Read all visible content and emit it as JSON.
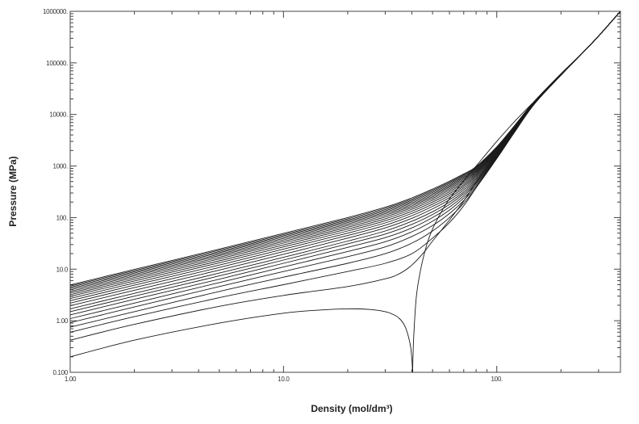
{
  "chart_data": {
    "type": "line",
    "title": "",
    "xlabel": "Density (mol/dm³)",
    "ylabel": "Pressure (MPa)",
    "x_scale": "log",
    "y_scale": "log",
    "xlim": [
      1.0,
      380
    ],
    "ylim": [
      0.1,
      1000000
    ],
    "grid": false,
    "legend": "none",
    "x_ticks": [
      {
        "value": 1,
        "label": "1.00"
      },
      {
        "value": 10,
        "label": "10.0"
      },
      {
        "value": 100,
        "label": "100."
      }
    ],
    "y_ticks": [
      {
        "value": 0.1,
        "label": "0.100"
      },
      {
        "value": 1,
        "label": "1.00"
      },
      {
        "value": 10,
        "label": "10.0"
      },
      {
        "value": 100,
        "label": "100."
      },
      {
        "value": 1000,
        "label": "1000."
      },
      {
        "value": 10000,
        "label": "10000."
      },
      {
        "value": 100000,
        "label": "100000."
      },
      {
        "value": 1000000,
        "label": "1000000."
      }
    ],
    "line_color": "#1a1a1a",
    "series": [
      {
        "x": [
          1.0,
          2.0,
          5.0,
          10.0,
          15.0,
          20.0,
          25.0,
          30.0,
          33.0,
          35.0,
          37.0,
          38.5,
          39.5,
          40.0,
          40.3
        ],
        "y": [
          0.2,
          0.42,
          0.9,
          1.4,
          1.62,
          1.7,
          1.66,
          1.5,
          1.3,
          1.1,
          0.8,
          0.5,
          0.3,
          0.18,
          0.1
        ]
      },
      {
        "x": [
          40.3,
          40.8,
          42.0,
          44.0,
          47.0,
          50.0,
          55.0,
          60.0,
          70.0,
          80.0,
          100.0,
          120.0,
          150.0,
          200.0,
          250.0,
          300.0,
          380.0
        ],
        "y": [
          0.1,
          0.5,
          3.0,
          10.0,
          30.0,
          60.0,
          130.0,
          230.0,
          520.0,
          1000.0,
          3000.0,
          7000.0,
          18000.0,
          60000.0,
          150000.0,
          330000.0,
          1000000.0
        ]
      },
      {
        "x": [
          1.0,
          2.0,
          5.0,
          10.0,
          20.0,
          30.0,
          35.0,
          40.0,
          45.0,
          50.0,
          60.0,
          70.0,
          80.0,
          100.0,
          120.0,
          150.0,
          200.0,
          250.0,
          300.0,
          380.0
        ],
        "y": [
          0.42,
          0.85,
          1.9,
          3.1,
          4.6,
          6.5,
          8.2,
          12.0,
          20.0,
          35.0,
          90.0,
          210.0,
          480.0,
          1800.0,
          5000.0,
          17000.0,
          60000.0,
          150000.0,
          330000.0,
          1000000.0
        ]
      },
      {
        "x": [
          1.0,
          2.0,
          5.0,
          10.0,
          20.0,
          30.0,
          40.0,
          50.0,
          60.0,
          70.0,
          80.0,
          100.0,
          120.0,
          150.0,
          200.0,
          250.0,
          300.0,
          380.0
        ],
        "y": [
          0.6,
          1.2,
          2.8,
          5.0,
          9.0,
          13.0,
          20.0,
          40.0,
          80.0,
          170.0,
          380.0,
          1500.0,
          4500.0,
          16000.0,
          58000.0,
          150000.0,
          330000.0,
          1000000.0
        ]
      },
      {
        "x": [
          1.0,
          2.0,
          5.0,
          10.0,
          20.0,
          30.0,
          40.0,
          50.0,
          60.0,
          70.0,
          80.0,
          100.0,
          120.0,
          150.0,
          200.0,
          250.0,
          300.0,
          380.0
        ],
        "y": [
          0.75,
          1.5,
          3.7,
          7.0,
          13.0,
          20.0,
          32.0,
          55.0,
          100.0,
          190.0,
          380.0,
          1400.0,
          4300.0,
          16000.0,
          58000.0,
          150000.0,
          330000.0,
          1000000.0
        ]
      },
      {
        "x": [
          1.0,
          2.0,
          5.0,
          10.0,
          20.0,
          30.0,
          40.0,
          50.0,
          60.0,
          70.0,
          80.0,
          100.0,
          120.0,
          150.0,
          200.0,
          250.0,
          300.0,
          380.0
        ],
        "y": [
          0.92,
          1.85,
          4.6,
          9.0,
          17.5,
          27.0,
          43.0,
          70.0,
          120.0,
          215.0,
          400.0,
          1400.0,
          4300.0,
          16000.0,
          58000.0,
          150000.0,
          330000.0,
          1000000.0
        ]
      },
      {
        "x": [
          1.0,
          2.0,
          5.0,
          10.0,
          20.0,
          30.0,
          40.0,
          50.0,
          60.0,
          70.0,
          80.0,
          100.0,
          120.0,
          150.0,
          200.0,
          250.0,
          300.0,
          380.0
        ],
        "y": [
          1.1,
          2.2,
          5.5,
          11.0,
          22.0,
          34.0,
          53.0,
          85.0,
          140.0,
          240.0,
          430.0,
          1450.0,
          4300.0,
          16000.0,
          58000.0,
          150000.0,
          330000.0,
          1000000.0
        ]
      },
      {
        "x": [
          1.0,
          2.0,
          5.0,
          10.0,
          20.0,
          30.0,
          40.0,
          50.0,
          60.0,
          70.0,
          80.0,
          100.0,
          120.0,
          150.0,
          200.0,
          250.0,
          300.0,
          380.0
        ],
        "y": [
          1.3,
          2.6,
          6.4,
          13.0,
          26.5,
          41.0,
          63.0,
          100.0,
          160.0,
          265.0,
          460.0,
          1500.0,
          4400.0,
          16000.0,
          58000.0,
          150000.0,
          330000.0,
          1000000.0
        ]
      },
      {
        "x": [
          1.0,
          2.0,
          5.0,
          10.0,
          20.0,
          30.0,
          40.0,
          50.0,
          60.0,
          70.0,
          80.0,
          100.0,
          120.0,
          150.0,
          200.0,
          250.0,
          300.0,
          380.0
        ],
        "y": [
          1.5,
          3.0,
          7.4,
          15.0,
          31.0,
          48.0,
          74.0,
          115.0,
          180.0,
          290.0,
          490.0,
          1550.0,
          4450.0,
          16200.0,
          58000.0,
          150000.0,
          330000.0,
          1000000.0
        ]
      },
      {
        "x": [
          1.0,
          2.0,
          5.0,
          10.0,
          20.0,
          30.0,
          40.0,
          50.0,
          60.0,
          70.0,
          80.0,
          100.0,
          120.0,
          150.0,
          200.0,
          250.0,
          300.0,
          380.0
        ],
        "y": [
          1.7,
          3.4,
          8.4,
          17.0,
          35.0,
          55.0,
          85.0,
          130.0,
          200.0,
          315.0,
          520.0,
          1600.0,
          4500.0,
          16300.0,
          58000.0,
          150000.0,
          330000.0,
          1000000.0
        ]
      },
      {
        "x": [
          1.0,
          2.0,
          5.0,
          10.0,
          20.0,
          30.0,
          40.0,
          50.0,
          60.0,
          70.0,
          80.0,
          100.0,
          120.0,
          150.0,
          200.0,
          250.0,
          300.0,
          380.0
        ],
        "y": [
          1.95,
          3.9,
          9.6,
          19.5,
          40.0,
          63.0,
          97.0,
          148.0,
          222.0,
          345.0,
          555.0,
          1650.0,
          4600.0,
          16400.0,
          58500.0,
          150000.0,
          330000.0,
          1000000.0
        ]
      },
      {
        "x": [
          1.0,
          2.0,
          5.0,
          10.0,
          20.0,
          30.0,
          40.0,
          50.0,
          60.0,
          70.0,
          80.0,
          100.0,
          120.0,
          150.0,
          200.0,
          250.0,
          300.0,
          380.0
        ],
        "y": [
          2.2,
          4.4,
          10.8,
          22.0,
          45.0,
          71.0,
          109.0,
          165.0,
          245.0,
          375.0,
          590.0,
          1700.0,
          4700.0,
          16500.0,
          58500.0,
          150000.0,
          330000.0,
          1000000.0
        ]
      },
      {
        "x": [
          1.0,
          2.0,
          5.0,
          10.0,
          20.0,
          30.0,
          40.0,
          50.0,
          60.0,
          70.0,
          80.0,
          100.0,
          120.0,
          150.0,
          200.0,
          250.0,
          300.0,
          380.0
        ],
        "y": [
          2.45,
          4.9,
          12.0,
          24.5,
          50.0,
          79.0,
          121.0,
          182.0,
          268.0,
          405.0,
          625.0,
          1760.0,
          4800.0,
          16600.0,
          59000.0,
          150000.0,
          330000.0,
          1000000.0
        ]
      },
      {
        "x": [
          1.0,
          2.0,
          5.0,
          10.0,
          20.0,
          30.0,
          40.0,
          50.0,
          60.0,
          70.0,
          80.0,
          100.0,
          120.0,
          150.0,
          200.0,
          250.0,
          300.0,
          380.0
        ],
        "y": [
          2.7,
          5.4,
          13.3,
          27.0,
          55.0,
          87.0,
          133.0,
          200.0,
          292.0,
          435.0,
          660.0,
          1820.0,
          4900.0,
          16800.0,
          59000.0,
          150000.0,
          330000.0,
          1000000.0
        ]
      },
      {
        "x": [
          1.0,
          2.0,
          5.0,
          10.0,
          20.0,
          30.0,
          40.0,
          50.0,
          60.0,
          70.0,
          80.0,
          100.0,
          120.0,
          150.0,
          200.0,
          250.0,
          300.0,
          380.0
        ],
        "y": [
          2.95,
          5.9,
          14.5,
          29.5,
          60.0,
          95.0,
          145.0,
          218.0,
          316.0,
          465.0,
          695.0,
          1880.0,
          5000.0,
          16900.0,
          59500.0,
          150000.0,
          330000.0,
          1000000.0
        ]
      },
      {
        "x": [
          1.0,
          2.0,
          5.0,
          10.0,
          20.0,
          30.0,
          40.0,
          50.0,
          60.0,
          70.0,
          80.0,
          100.0,
          120.0,
          150.0,
          200.0,
          250.0,
          300.0,
          380.0
        ],
        "y": [
          3.2,
          6.4,
          15.8,
          32.0,
          65.0,
          103.0,
          157.0,
          235.0,
          340.0,
          495.0,
          730.0,
          1940.0,
          5100.0,
          17000.0,
          59500.0,
          150000.0,
          330000.0,
          1000000.0
        ]
      },
      {
        "x": [
          1.0,
          2.0,
          5.0,
          10.0,
          20.0,
          30.0,
          40.0,
          50.0,
          60.0,
          70.0,
          80.0,
          100.0,
          120.0,
          150.0,
          200.0,
          250.0,
          300.0,
          380.0
        ],
        "y": [
          3.45,
          6.9,
          17.0,
          34.5,
          70.0,
          111.0,
          169.0,
          252.0,
          364.0,
          525.0,
          765.0,
          2000.0,
          5200.0,
          17200.0,
          60000.0,
          150000.0,
          330000.0,
          1000000.0
        ]
      },
      {
        "x": [
          1.0,
          2.0,
          5.0,
          10.0,
          20.0,
          30.0,
          40.0,
          50.0,
          60.0,
          70.0,
          80.0,
          100.0,
          120.0,
          150.0,
          200.0,
          250.0,
          300.0,
          380.0
        ],
        "y": [
          3.7,
          7.4,
          18.3,
          37.0,
          75.0,
          119.0,
          181.0,
          270.0,
          388.0,
          555.0,
          800.0,
          2060.0,
          5300.0,
          17300.0,
          60000.0,
          150000.0,
          330000.0,
          1000000.0
        ]
      },
      {
        "x": [
          1.0,
          2.0,
          5.0,
          10.0,
          20.0,
          30.0,
          40.0,
          50.0,
          60.0,
          70.0,
          80.0,
          100.0,
          120.0,
          150.0,
          200.0,
          250.0,
          300.0,
          380.0
        ],
        "y": [
          3.95,
          7.9,
          19.5,
          39.5,
          80.0,
          127.0,
          193.0,
          287.0,
          412.0,
          585.0,
          835.0,
          2120.0,
          5400.0,
          17400.0,
          60500.0,
          150000.0,
          330000.0,
          1000000.0
        ]
      },
      {
        "x": [
          1.0,
          2.0,
          5.0,
          10.0,
          20.0,
          30.0,
          40.0,
          50.0,
          60.0,
          70.0,
          80.0,
          100.0,
          120.0,
          150.0,
          200.0,
          250.0,
          300.0,
          380.0
        ],
        "y": [
          4.2,
          8.4,
          20.8,
          42.0,
          85.0,
          135.0,
          205.0,
          305.0,
          436.0,
          615.0,
          870.0,
          2180.0,
          5500.0,
          17600.0,
          60500.0,
          150000.0,
          330000.0,
          1000000.0
        ]
      },
      {
        "x": [
          1.0,
          2.0,
          5.0,
          10.0,
          20.0,
          30.0,
          40.0,
          50.0,
          60.0,
          70.0,
          80.0,
          100.0,
          120.0,
          150.0,
          200.0,
          250.0,
          300.0,
          380.0
        ],
        "y": [
          4.45,
          8.9,
          22.0,
          44.5,
          90.0,
          143.0,
          217.0,
          322.0,
          460.0,
          645.0,
          905.0,
          2240.0,
          5600.0,
          17700.0,
          61000.0,
          150000.0,
          330000.0,
          1000000.0
        ]
      },
      {
        "x": [
          1.0,
          2.0,
          5.0,
          10.0,
          20.0,
          30.0,
          40.0,
          50.0,
          60.0,
          70.0,
          80.0,
          100.0,
          120.0,
          150.0,
          200.0,
          250.0,
          300.0,
          380.0
        ],
        "y": [
          4.7,
          9.4,
          23.3,
          47.0,
          95.0,
          151.0,
          229.0,
          340.0,
          484.0,
          675.0,
          940.0,
          2300.0,
          5700.0,
          17800.0,
          61000.0,
          150000.0,
          330000.0,
          1000000.0
        ]
      },
      {
        "x": [
          1.0,
          2.0,
          5.0,
          10.0,
          20.0,
          30.0,
          40.0,
          50.0,
          60.0,
          70.0,
          80.0,
          100.0,
          120.0,
          150.0,
          200.0,
          250.0,
          300.0,
          380.0
        ],
        "y": [
          4.95,
          9.9,
          24.5,
          49.5,
          100.0,
          159.0,
          241.0,
          357.0,
          508.0,
          705.0,
          975.0,
          2360.0,
          5800.0,
          18000.0,
          61500.0,
          150000.0,
          330000.0,
          1000000.0
        ]
      }
    ]
  }
}
